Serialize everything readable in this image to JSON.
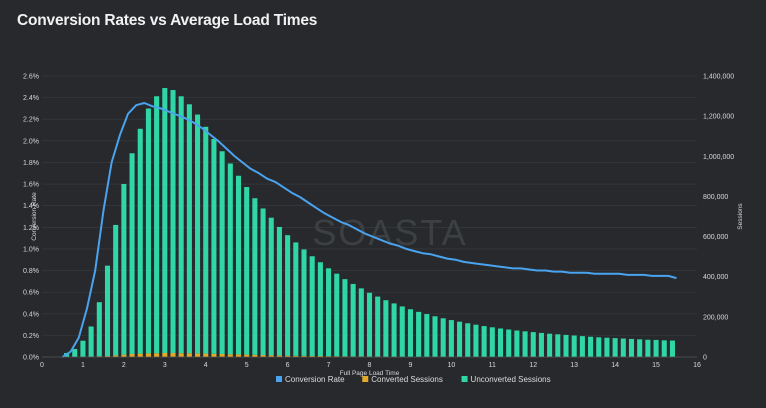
{
  "title": "Conversion Rates vs Average Load Times",
  "watermark": "SOASTA",
  "chart_data": {
    "type": "bar",
    "title": "Conversion Rates vs Average Load Times",
    "xlabel": "Full Page Load Time",
    "ylabel_left": "Conversion Rate",
    "ylabel_right": "Sessions",
    "xlim": [
      0,
      16
    ],
    "x_ticks": [
      "0",
      "1",
      "2",
      "3",
      "4",
      "5",
      "6",
      "7",
      "8",
      "9",
      "10",
      "11",
      "12",
      "13",
      "14",
      "15",
      "16"
    ],
    "ylim_left": [
      0,
      2.6
    ],
    "y_left_ticks": [
      "0.0%",
      "0.2%",
      "0.4%",
      "0.6%",
      "0.8%",
      "1.0%",
      "1.2%",
      "1.4%",
      "1.6%",
      "1.8%",
      "2.0%",
      "2.2%",
      "2.4%",
      "2.6%"
    ],
    "ylim_right": [
      0,
      1400000
    ],
    "y_right_ticks": [
      "0",
      "200,000",
      "400,000",
      "600,000",
      "800,000",
      "1,000,000",
      "1,200,000",
      "1,400,000"
    ],
    "legend_position": "bottom",
    "colors": {
      "conversion_rate": "#4aa3ee",
      "converted": "#e0a92a",
      "unconverted": "#2fd6a6",
      "grid": "#3a3d41"
    },
    "series": [
      {
        "name": "Conversion Rate",
        "axis": "left",
        "kind": "line",
        "x": [
          0.5,
          0.7,
          0.9,
          1.1,
          1.3,
          1.5,
          1.7,
          1.9,
          2.1,
          2.3,
          2.5,
          2.7,
          2.9,
          3.1,
          3.3,
          3.5,
          3.7,
          3.9,
          4.1,
          4.3,
          4.5,
          4.7,
          4.9,
          5.1,
          5.3,
          5.5,
          5.7,
          5.9,
          6.1,
          6.3,
          6.5,
          6.7,
          6.9,
          7.1,
          7.3,
          7.5,
          7.7,
          7.9,
          8.1,
          8.3,
          8.5,
          8.7,
          8.9,
          9.1,
          9.3,
          9.5,
          9.7,
          9.9,
          10.1,
          10.3,
          10.5,
          10.7,
          10.9,
          11.1,
          11.3,
          11.5,
          11.7,
          11.9,
          12.1,
          12.3,
          12.5,
          12.7,
          12.9,
          13.1,
          13.3,
          13.5,
          13.7,
          13.9,
          14.1,
          14.3,
          14.5,
          14.7,
          14.9,
          15.1,
          15.3,
          15.5
        ],
        "values": [
          0.0,
          0.05,
          0.18,
          0.45,
          0.8,
          1.35,
          1.8,
          2.05,
          2.25,
          2.33,
          2.35,
          2.32,
          2.3,
          2.27,
          2.24,
          2.21,
          2.17,
          2.12,
          2.06,
          2.0,
          1.93,
          1.86,
          1.8,
          1.74,
          1.7,
          1.65,
          1.62,
          1.57,
          1.52,
          1.48,
          1.43,
          1.38,
          1.33,
          1.29,
          1.25,
          1.22,
          1.18,
          1.14,
          1.11,
          1.08,
          1.05,
          1.03,
          1.0,
          0.98,
          0.96,
          0.95,
          0.93,
          0.91,
          0.9,
          0.88,
          0.87,
          0.86,
          0.85,
          0.84,
          0.83,
          0.82,
          0.82,
          0.81,
          0.8,
          0.8,
          0.79,
          0.79,
          0.78,
          0.78,
          0.78,
          0.77,
          0.77,
          0.77,
          0.77,
          0.76,
          0.76,
          0.76,
          0.75,
          0.75,
          0.75,
          0.73
        ]
      },
      {
        "name": "Converted Sessions",
        "axis": "right",
        "kind": "bar",
        "x": [
          0.6,
          0.8,
          1.0,
          1.2,
          1.4,
          1.6,
          1.8,
          2.0,
          2.2,
          2.4,
          2.6,
          2.8,
          3.0,
          3.2,
          3.4,
          3.6,
          3.8,
          4.0,
          4.2,
          4.4,
          4.6,
          4.8,
          5.0,
          5.2,
          5.4,
          5.6,
          5.8,
          6.0,
          6.2,
          6.4,
          6.6,
          6.8,
          7.0,
          7.2,
          7.4,
          7.6,
          7.8,
          8.0,
          8.2,
          8.4,
          8.6,
          8.8,
          9.0,
          9.2,
          9.4,
          9.6,
          9.8,
          10.0,
          10.2,
          10.4,
          10.6,
          10.8,
          11.0,
          11.2,
          11.4,
          11.6,
          11.8,
          12.0,
          12.2,
          12.4,
          12.6,
          12.8,
          13.0,
          13.2,
          13.4,
          13.6,
          13.8,
          14.0,
          14.2,
          14.4,
          14.6,
          14.8,
          15.0,
          15.2,
          15.4
        ],
        "values": [
          0,
          0,
          1000,
          2000,
          3000,
          5000,
          8000,
          12000,
          15000,
          17000,
          18000,
          19000,
          20000,
          20000,
          19000,
          19000,
          18000,
          17000,
          16000,
          15000,
          14000,
          13000,
          12000,
          11000,
          10000,
          9000,
          8000,
          7000,
          6000,
          6000,
          5000,
          5000,
          4000,
          4000,
          3000,
          3000,
          3000,
          2000,
          2000,
          2000,
          2000,
          2000,
          1000,
          1000,
          1000,
          1000,
          1000,
          1000,
          1000,
          1000,
          1000,
          1000,
          1000,
          1000,
          1000,
          1000,
          1000,
          1000,
          1000,
          1000,
          1000,
          1000,
          1000,
          1000,
          1000,
          1000,
          1000,
          1000,
          1000,
          1000,
          1000,
          1000,
          1000,
          1000,
          1000
        ]
      },
      {
        "name": "Unconverted Sessions",
        "axis": "right",
        "kind": "bar",
        "x": [
          0.6,
          0.8,
          1.0,
          1.2,
          1.4,
          1.6,
          1.8,
          2.0,
          2.2,
          2.4,
          2.6,
          2.8,
          3.0,
          3.2,
          3.4,
          3.6,
          3.8,
          4.0,
          4.2,
          4.4,
          4.6,
          4.8,
          5.0,
          5.2,
          5.4,
          5.6,
          5.8,
          6.0,
          6.2,
          6.4,
          6.6,
          6.8,
          7.0,
          7.2,
          7.4,
          7.6,
          7.8,
          8.0,
          8.2,
          8.4,
          8.6,
          8.8,
          9.0,
          9.2,
          9.4,
          9.6,
          9.8,
          10.0,
          10.2,
          10.4,
          10.6,
          10.8,
          11.0,
          11.2,
          11.4,
          11.6,
          11.8,
          12.0,
          12.2,
          12.4,
          12.6,
          12.8,
          13.0,
          13.2,
          13.4,
          13.6,
          13.8,
          14.0,
          14.2,
          14.4,
          14.6,
          14.8,
          15.0,
          15.2,
          15.4
        ],
        "values": [
          20000,
          40000,
          80000,
          150000,
          270000,
          450000,
          650000,
          850000,
          1000000,
          1120000,
          1220000,
          1280000,
          1320000,
          1310000,
          1280000,
          1240000,
          1190000,
          1130000,
          1070000,
          1010000,
          950000,
          890000,
          835000,
          780000,
          730000,
          685000,
          640000,
          600000,
          565000,
          530000,
          497000,
          467000,
          438000,
          411000,
          385000,
          361000,
          339000,
          318000,
          299000,
          281000,
          265000,
          250000,
          237000,
          224000,
          213000,
          202000,
          192000,
          183000,
          175000,
          167000,
          160000,
          153000,
          147000,
          141000,
          136000,
          131000,
          127000,
          123000,
          119000,
          115000,
          112000,
          109000,
          106000,
          103000,
          100000,
          97000,
          95000,
          93000,
          91000,
          89000,
          87000,
          85000,
          84000,
          82000,
          81000
        ]
      }
    ]
  }
}
